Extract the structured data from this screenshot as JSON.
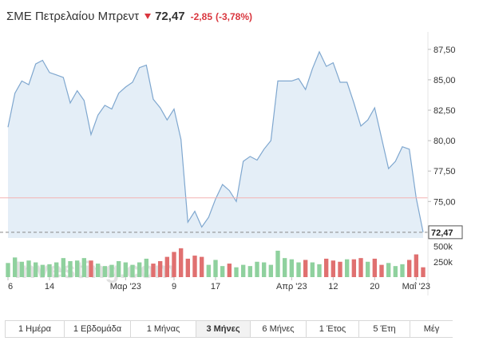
{
  "header": {
    "title": "ΣΜΕ Πετρελαίου Μπρεντ",
    "price": "72,47",
    "change": "-2,85",
    "change_pct": "(-3,78%)",
    "direction_icon": "down-arrow-icon"
  },
  "colors": {
    "line": "#7fa7cf",
    "area": "#e4eef7",
    "volume_up": "#8fd19e",
    "volume_down": "#e07070",
    "reference_line": "#f4b3b3",
    "negative": "#d9363e"
  },
  "chart_data": [
    {
      "type": "area",
      "series": [
        {
          "values": [
            81.1,
            83.9,
            84.9,
            84.6,
            86.3,
            86.6,
            85.6,
            85.4,
            85.2,
            83.1,
            84.1,
            83.3,
            80.5,
            82.1,
            82.9,
            82.6,
            83.9,
            84.4,
            84.8,
            86.0,
            86.2,
            83.4,
            82.7,
            81.7,
            82.6,
            80.1,
            73.3,
            74.2,
            72.9,
            73.7,
            75.2,
            76.4,
            75.9,
            75.0,
            78.3,
            78.7,
            78.4,
            79.3,
            80.0,
            84.9,
            84.9,
            84.9,
            85.1,
            84.2,
            85.9,
            87.3,
            86.1,
            86.4,
            84.8,
            84.8,
            83.1,
            81.2,
            81.7,
            82.7,
            80.2,
            77.7,
            78.3,
            79.5,
            79.3,
            75.3,
            72.47
          ]
        }
      ],
      "y_ticks": [
        "87,50",
        "85,00",
        "82,50",
        "80,00",
        "77,50",
        "75,00"
      ],
      "y_tick_values": [
        87.5,
        85.0,
        82.5,
        80.0,
        77.5,
        75.0
      ],
      "ylim": [
        72.0,
        88.8
      ],
      "x_ticks": [
        "6",
        "14",
        "Μαρ '23",
        "9",
        "17",
        "Απρ '23",
        "12",
        "20",
        "Μαΐ '23"
      ],
      "x_tick_indices": [
        0,
        6,
        17,
        24,
        30,
        41,
        47,
        53,
        59
      ],
      "reference_value": 75.3,
      "last_value": 72.47,
      "last_label": "72,47",
      "grid": false
    },
    {
      "type": "bar",
      "values": [
        230,
        320,
        250,
        270,
        240,
        200,
        210,
        240,
        310,
        260,
        270,
        310,
        270,
        220,
        180,
        200,
        260,
        240,
        200,
        240,
        300,
        220,
        260,
        330,
        410,
        470,
        300,
        350,
        330,
        200,
        280,
        180,
        220,
        160,
        200,
        180,
        250,
        240,
        200,
        430,
        310,
        290,
        240,
        280,
        240,
        210,
        300,
        270,
        250,
        290,
        290,
        310,
        250,
        300,
        200,
        230,
        180,
        210,
        280,
        370,
        160
      ],
      "down": [
        0,
        0,
        0,
        0,
        0,
        0,
        0,
        0,
        0,
        0,
        0,
        0,
        1,
        0,
        0,
        0,
        0,
        0,
        0,
        0,
        0,
        1,
        1,
        1,
        1,
        1,
        1,
        1,
        1,
        0,
        0,
        0,
        1,
        0,
        0,
        0,
        0,
        0,
        0,
        0,
        0,
        0,
        0,
        1,
        0,
        0,
        1,
        1,
        1,
        0,
        1,
        1,
        0,
        1,
        1,
        0,
        0,
        0,
        1,
        1,
        1
      ],
      "y_ticks": [
        "500k",
        "250k"
      ],
      "y_tick_values": [
        500,
        250
      ],
      "ylim": [
        0,
        520
      ]
    }
  ],
  "watermark": "Investing.com",
  "tabs": [
    {
      "label": "1 Ημέρα",
      "active": false
    },
    {
      "label": "1 Εβδομάδα",
      "active": false
    },
    {
      "label": "1 Μήνας",
      "active": false
    },
    {
      "label": "3 Μήνες",
      "active": true
    },
    {
      "label": "6 Μήνες",
      "active": false
    },
    {
      "label": "1 Έτος",
      "active": false
    },
    {
      "label": "5 Έτη",
      "active": false
    },
    {
      "label": "Μέγ",
      "active": false
    }
  ]
}
